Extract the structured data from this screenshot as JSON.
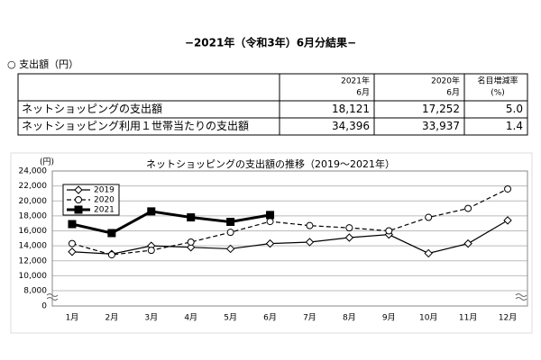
{
  "header": {
    "title": "−2021年（令和3年）6月分結果−",
    "section": "○ 支出額（円）"
  },
  "table": {
    "columns": [
      [
        "2021年",
        "6月"
      ],
      [
        "2020年",
        "6月"
      ],
      [
        "名目増減率",
        "(%)"
      ]
    ],
    "rows": [
      [
        "ネットショッピングの支出額",
        "18,121",
        "17,252",
        "5.0"
      ],
      [
        "ネットショッピング利用１世帯当たりの支出額",
        "34,396",
        "33,937",
        "1.4"
      ]
    ]
  },
  "chart_data": {
    "type": "line",
    "title": "ネットショッピングの支出額の推移（2019～2021年）",
    "y_unit": "(円)",
    "categories": [
      "1月",
      "2月",
      "3月",
      "4月",
      "5月",
      "6月",
      "7月",
      "8月",
      "9月",
      "10月",
      "11月",
      "12月"
    ],
    "series": [
      {
        "name": "2019",
        "color": "#000000",
        "dash": "solid",
        "marker": "diamond",
        "values": [
          13200,
          12900,
          14000,
          13800,
          13600,
          14300,
          14500,
          15100,
          15500,
          13000,
          14300,
          17400
        ]
      },
      {
        "name": "2020",
        "color": "#000000",
        "dash": "dashed",
        "marker": "circle",
        "values": [
          14300,
          12800,
          13400,
          14500,
          15800,
          17252,
          16700,
          16400,
          16000,
          17800,
          19000,
          21600
        ]
      },
      {
        "name": "2021",
        "color": "#000000",
        "dash": "bold",
        "marker": "square",
        "values": [
          16900,
          15700,
          18600,
          17800,
          17200,
          18121,
          null,
          null,
          null,
          null,
          null,
          null
        ]
      }
    ],
    "ylim": [
      0,
      24000
    ],
    "axis_break": [
      0,
      8000
    ],
    "yticks": [
      {
        "value": 24000,
        "label": "24,000"
      },
      {
        "value": 22000,
        "label": "22,000"
      },
      {
        "value": 20000,
        "label": "20,000"
      },
      {
        "value": 18000,
        "label": "18,000"
      },
      {
        "value": 16000,
        "label": "16,000"
      },
      {
        "value": 14000,
        "label": "14,000"
      },
      {
        "value": 12000,
        "label": "12,000"
      },
      {
        "value": 10000,
        "label": "10,000"
      },
      {
        "value": 8000,
        "label": "8,000"
      },
      0
    ],
    "grid": true,
    "legend": "upper left"
  }
}
